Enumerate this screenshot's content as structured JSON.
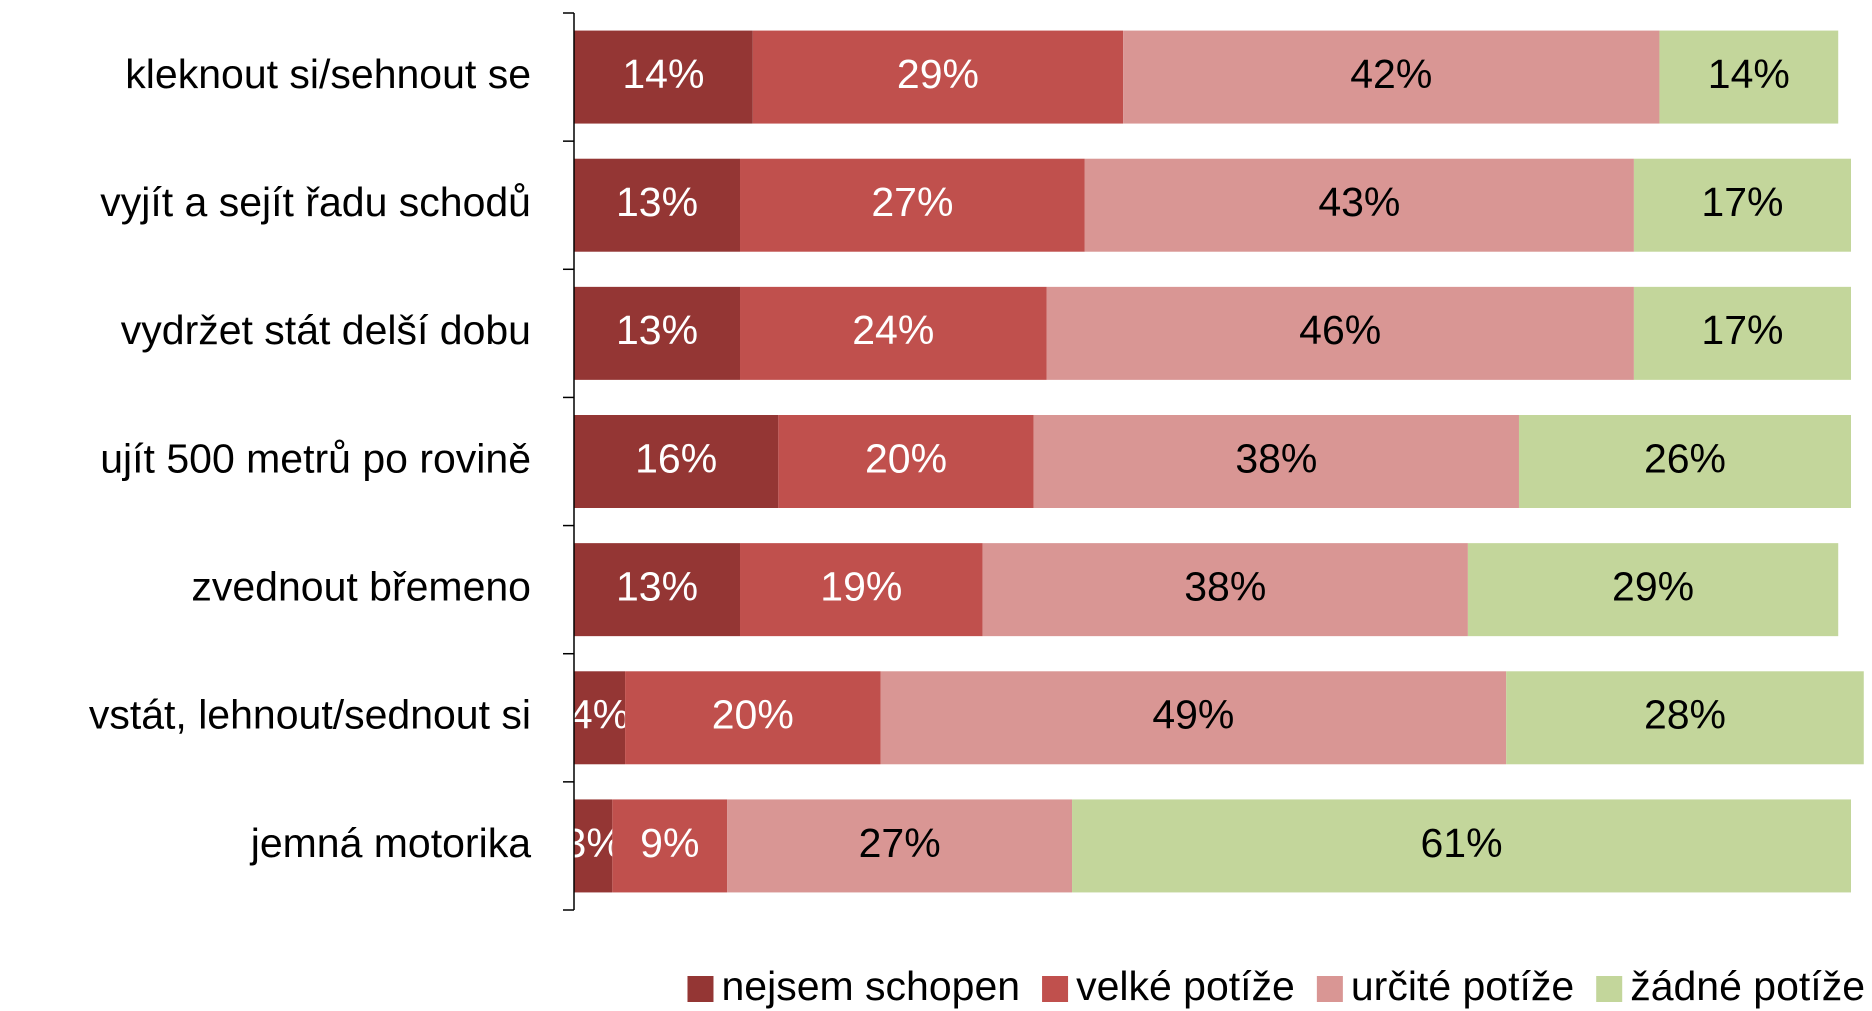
{
  "chart_data": {
    "type": "stacked_barh",
    "categories": [
      "kleknout si/sehnout se",
      "vyjít a sejít řadu schodů",
      "vydržet stát delší dobu",
      "ujít 500 metrů po rovině",
      "zvednout břemeno",
      "vstát, lehnout/sednout si",
      "jemná motorika"
    ],
    "series": [
      {
        "name": "nejsem schopen",
        "color": "#943634",
        "values": [
          14,
          13,
          13,
          16,
          13,
          4,
          3
        ],
        "value_labels": [
          "14%",
          "13%",
          "13%",
          "16%",
          "13%",
          "4%",
          "3%"
        ]
      },
      {
        "name": "velké potíže",
        "color": "#c0504d",
        "values": [
          29,
          27,
          24,
          20,
          19,
          20,
          9
        ],
        "value_labels": [
          "29%",
          "27%",
          "24%",
          "20%",
          "19%",
          "20%",
          "9%"
        ]
      },
      {
        "name": "určité potíže",
        "color": "#d99694",
        "values": [
          42,
          43,
          46,
          38,
          38,
          49,
          27
        ],
        "value_labels": [
          "42%",
          "43%",
          "46%",
          "38%",
          "38%",
          "49%",
          "27%"
        ]
      },
      {
        "name": "žádné potíže",
        "color": "#c3d69b",
        "values": [
          14,
          17,
          17,
          26,
          29,
          28,
          61
        ],
        "value_labels": [
          "14%",
          "17%",
          "17%",
          "26%",
          "29%",
          "28%",
          "61%"
        ]
      }
    ],
    "xlim": [
      0,
      100
    ],
    "legend": "bottom"
  }
}
